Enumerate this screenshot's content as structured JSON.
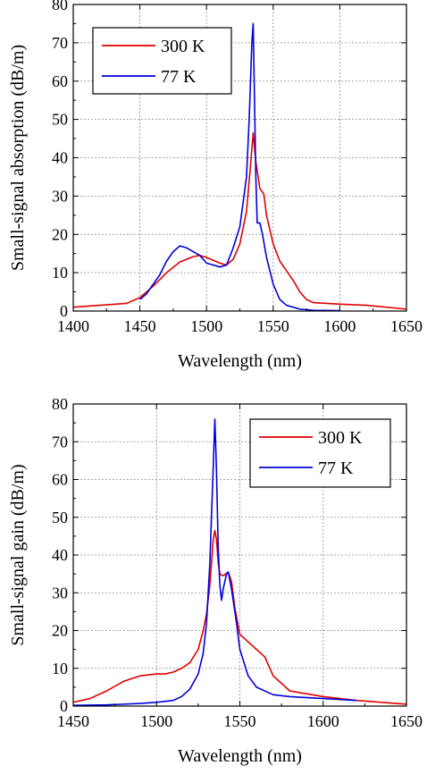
{
  "chart_data": [
    {
      "type": "line",
      "title": "",
      "xlabel": "Wavelength (nm)",
      "ylabel": "Small-signal absorption (dB/m)",
      "xlim": [
        1400,
        1650
      ],
      "ylim": [
        0,
        80
      ],
      "xticks": [
        1400,
        1450,
        1500,
        1550,
        1600,
        1650
      ],
      "yticks": [
        0,
        10,
        20,
        30,
        40,
        50,
        60,
        70,
        80
      ],
      "grid": true,
      "legend_position": "top-left",
      "series": [
        {
          "name": "300 K",
          "color": "#e00000",
          "x": [
            1400,
            1420,
            1440,
            1450,
            1460,
            1470,
            1480,
            1490,
            1495,
            1500,
            1510,
            1515,
            1520,
            1525,
            1530,
            1533,
            1535,
            1537,
            1540,
            1543,
            1545,
            1550,
            1555,
            1560,
            1565,
            1570,
            1575,
            1580,
            1600,
            1620,
            1650
          ],
          "y": [
            1,
            1.5,
            2,
            3.5,
            6.5,
            10,
            12.8,
            14.2,
            14.5,
            14,
            12.5,
            12,
            13.5,
            17.5,
            26,
            38,
            46.5,
            39,
            32,
            30.5,
            25,
            17.5,
            13,
            10.5,
            8,
            5,
            3,
            2.2,
            1.8,
            1.5,
            0.5
          ]
        },
        {
          "name": "77 K",
          "color": "#0000dd",
          "x": [
            1450,
            1455,
            1460,
            1465,
            1470,
            1475,
            1480,
            1485,
            1490,
            1495,
            1500,
            1510,
            1515,
            1520,
            1525,
            1530,
            1532,
            1534,
            1535,
            1536,
            1537,
            1538,
            1540,
            1542,
            1545,
            1550,
            1555,
            1560,
            1570,
            1580,
            1600
          ],
          "y": [
            3,
            4.5,
            7,
            9.5,
            13,
            15.5,
            17,
            16.5,
            15.5,
            14.5,
            12.5,
            11.5,
            12,
            16.5,
            22,
            35,
            50,
            70,
            75,
            55,
            35,
            23,
            23,
            20,
            14,
            7,
            3,
            1.5,
            0.5,
            0.2,
            0.1
          ]
        }
      ]
    },
    {
      "type": "line",
      "title": "",
      "xlabel": "Wavelength (nm)",
      "ylabel": "Small-signal gain (dB/m)",
      "xlim": [
        1450,
        1650
      ],
      "ylim": [
        0,
        80
      ],
      "xticks": [
        1450,
        1500,
        1550,
        1600,
        1650
      ],
      "yticks": [
        0,
        10,
        20,
        30,
        40,
        50,
        60,
        70,
        80
      ],
      "grid": true,
      "legend_position": "top-right",
      "series": [
        {
          "name": "300 K",
          "color": "#e00000",
          "x": [
            1450,
            1460,
            1470,
            1480,
            1490,
            1500,
            1505,
            1510,
            1515,
            1520,
            1525,
            1528,
            1530,
            1532,
            1534,
            1535,
            1536,
            1537,
            1538,
            1540,
            1543,
            1545,
            1547,
            1550,
            1555,
            1560,
            1565,
            1570,
            1580,
            1600,
            1620,
            1650
          ],
          "y": [
            1,
            2,
            4,
            6.5,
            8,
            8.5,
            8.5,
            9,
            10,
            11.5,
            15,
            20,
            24.5,
            32,
            44,
            46.5,
            44,
            38,
            35,
            34.5,
            35.5,
            33,
            26,
            19,
            17,
            15,
            13,
            8,
            4,
            2.5,
            1.5,
            0.5
          ]
        },
        {
          "name": "77 K",
          "color": "#0000dd",
          "x": [
            1450,
            1470,
            1490,
            1500,
            1510,
            1515,
            1520,
            1525,
            1528,
            1530,
            1532,
            1534,
            1535,
            1536,
            1537,
            1538,
            1539,
            1540,
            1542,
            1543,
            1545,
            1548,
            1550,
            1555,
            1560,
            1570,
            1580,
            1600,
            1620
          ],
          "y": [
            0.2,
            0.3,
            0.7,
            1,
            1.5,
            2.5,
            4.5,
            8.5,
            14,
            22,
            38,
            63,
            76,
            62,
            42,
            32,
            28,
            31,
            35,
            35.5,
            31,
            22,
            15,
            8,
            5,
            3,
            2.5,
            2,
            1.5
          ]
        }
      ]
    }
  ]
}
